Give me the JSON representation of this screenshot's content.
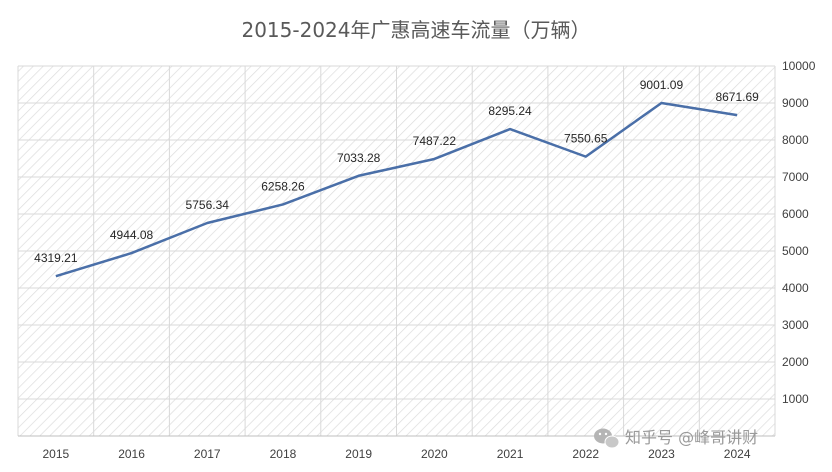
{
  "chart_data": {
    "type": "line",
    "title": "2015-2024年广惠高速车流量（万辆）",
    "categories": [
      "2015",
      "2016",
      "2017",
      "2018",
      "2019",
      "2020",
      "2021",
      "2022",
      "2023",
      "2024"
    ],
    "series": [
      {
        "values": [
          4319.21,
          4944.08,
          5756.34,
          6258.26,
          7033.28,
          7487.22,
          8295.24,
          7550.65,
          9001.09,
          8671.69
        ],
        "labels": [
          "4319.21",
          "4944.08",
          "5756.34",
          "6258.26",
          "7033.28",
          "7487.22",
          "8295.24",
          "7550.65",
          "9001.09",
          "8671.69"
        ],
        "color": "#4a6fa8"
      }
    ],
    "ylim": [
      0,
      10000
    ],
    "yticks": [
      1000,
      2000,
      3000,
      4000,
      5000,
      6000,
      7000,
      8000,
      9000,
      10000
    ],
    "ytick_labels": [
      "1000",
      "2000",
      "3000",
      "4000",
      "5000",
      "6000",
      "7000",
      "8000",
      "9000",
      "10000"
    ],
    "y_axis_side": "right",
    "grid": true,
    "legend": "none",
    "background": "diagonal-hatch"
  },
  "watermark": {
    "text": "知乎号 @峰哥讲财",
    "icon": "wechat-icon"
  },
  "colors": {
    "line": "#4a6fa8",
    "hatch": "#d9d9d9",
    "grid": "#d9d9d9",
    "title": "#595959"
  }
}
